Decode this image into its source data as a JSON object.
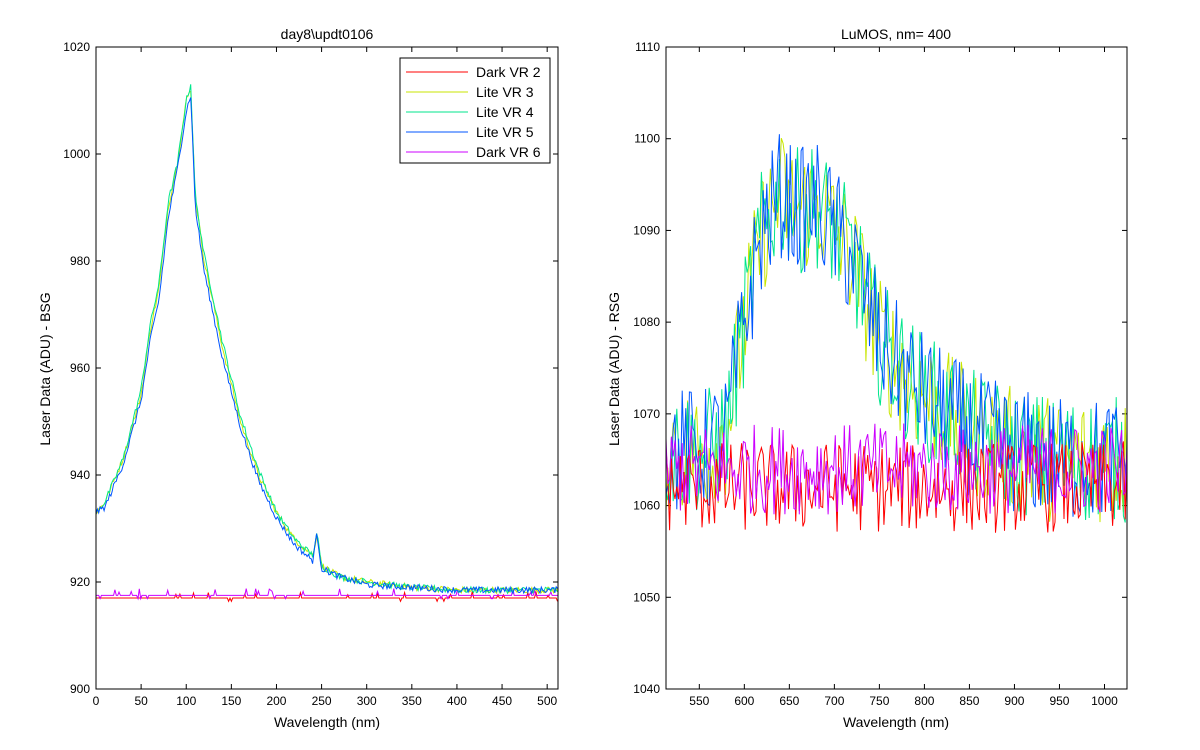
{
  "chart_data": [
    {
      "type": "line",
      "title": "day8\\updt0106",
      "xlabel": "Wavelength (nm)",
      "ylabel": "Laser Data (ADU) - BSG",
      "xlim": [
        0,
        512
      ],
      "ylim": [
        900,
        1020
      ],
      "xticks": [
        0,
        50,
        100,
        150,
        200,
        250,
        300,
        350,
        400,
        450,
        500
      ],
      "yticks": [
        900,
        920,
        940,
        960,
        980,
        1000,
        1020
      ],
      "legend_position": "top-right",
      "series": [
        {
          "name": "Dark VR 2",
          "color": "#ff0000",
          "kind": "dark",
          "x": [
            0,
            512
          ],
          "y": [
            917,
            917
          ]
        },
        {
          "name": "Lite VR 3",
          "color": "#c8e600",
          "kind": "peak",
          "x": [
            0,
            10,
            30,
            50,
            60,
            70,
            80,
            90,
            100,
            105,
            110,
            120,
            140,
            160,
            180,
            200,
            220,
            240,
            245,
            250,
            270,
            300,
            350,
            400,
            450,
            512
          ],
          "y": [
            933,
            935,
            943,
            955,
            967,
            975,
            990,
            998,
            1010,
            1012,
            992,
            980,
            964,
            950,
            940,
            933,
            928,
            925,
            929,
            923,
            921,
            920,
            919,
            918.5,
            918.5,
            918.5
          ]
        },
        {
          "name": "Lite VR 4",
          "color": "#00e68c",
          "kind": "peak",
          "x": [
            0,
            10,
            30,
            50,
            60,
            70,
            80,
            90,
            100,
            105,
            110,
            120,
            140,
            160,
            180,
            200,
            220,
            240,
            245,
            250,
            270,
            300,
            350,
            400,
            450,
            512
          ],
          "y": [
            933,
            935,
            943,
            956,
            968,
            976,
            991,
            998,
            1010,
            1013,
            992,
            981,
            965,
            951,
            941,
            933,
            928,
            925,
            929,
            923,
            921,
            920,
            919,
            918.5,
            918.5,
            918.5
          ]
        },
        {
          "name": "Lite VR 5",
          "color": "#0055ff",
          "kind": "peak",
          "x": [
            0,
            10,
            30,
            50,
            60,
            70,
            80,
            90,
            100,
            105,
            110,
            120,
            140,
            160,
            180,
            200,
            220,
            240,
            245,
            250,
            270,
            300,
            350,
            400,
            450,
            512
          ],
          "y": [
            933,
            934,
            942,
            954,
            965,
            973,
            988,
            997,
            1008,
            1011,
            990,
            978,
            962,
            949,
            939,
            932,
            927,
            924,
            929,
            922.5,
            921,
            919.5,
            919,
            918.5,
            918.5,
            918.5
          ]
        },
        {
          "name": "Dark VR 6",
          "color": "#cc00ff",
          "kind": "dark",
          "x": [
            0,
            512
          ],
          "y": [
            917.5,
            917.5
          ]
        }
      ]
    },
    {
      "type": "line",
      "title": "LuMOS, nm= 400",
      "xlabel": "Wavelength (nm)",
      "ylabel": "Laser Data (ADU) - RSG",
      "xlim": [
        513,
        1025
      ],
      "ylim": [
        1040,
        1110
      ],
      "xticks": [
        550,
        600,
        650,
        700,
        750,
        800,
        850,
        900,
        950,
        1000
      ],
      "yticks": [
        1040,
        1050,
        1060,
        1070,
        1080,
        1090,
        1100,
        1110
      ],
      "series": [
        {
          "name": "Dark VR 2",
          "color": "#ff0000",
          "kind": "dark",
          "x": [
            513,
            1025
          ],
          "y": [
            1062,
            1062
          ],
          "noise": 10
        },
        {
          "name": "Lite VR 3",
          "color": "#c8e600",
          "kind": "noisy",
          "x": [
            513,
            560,
            580,
            600,
            620,
            640,
            660,
            680,
            700,
            720,
            750,
            780,
            800,
            850,
            900,
            950,
            1000,
            1025
          ],
          "y": [
            1066,
            1066,
            1068,
            1080,
            1090,
            1094,
            1092,
            1093,
            1090,
            1087,
            1078,
            1074,
            1072,
            1068,
            1066,
            1065,
            1065,
            1065
          ],
          "noise": 14
        },
        {
          "name": "Lite VR 4",
          "color": "#00e68c",
          "kind": "noisy",
          "x": [
            513,
            560,
            580,
            600,
            620,
            640,
            660,
            680,
            700,
            720,
            750,
            780,
            800,
            850,
            900,
            950,
            1000,
            1025
          ],
          "y": [
            1066,
            1066,
            1068,
            1080,
            1090,
            1094,
            1092,
            1093,
            1090,
            1087,
            1078,
            1074,
            1072,
            1068,
            1066,
            1065,
            1065,
            1065
          ],
          "noise": 14
        },
        {
          "name": "Lite VR 5",
          "color": "#0055ff",
          "kind": "noisy",
          "x": [
            513,
            560,
            580,
            600,
            620,
            640,
            660,
            680,
            700,
            720,
            750,
            780,
            800,
            850,
            900,
            950,
            1000,
            1025
          ],
          "y": [
            1066,
            1066,
            1068,
            1080,
            1090,
            1094,
            1092,
            1093,
            1090,
            1087,
            1078,
            1074,
            1072,
            1068,
            1066,
            1065,
            1065,
            1065
          ],
          "noise": 14
        },
        {
          "name": "Dark VR 6",
          "color": "#cc00ff",
          "kind": "dark",
          "x": [
            513,
            1025
          ],
          "y": [
            1064,
            1064
          ],
          "noise": 10
        }
      ]
    }
  ]
}
